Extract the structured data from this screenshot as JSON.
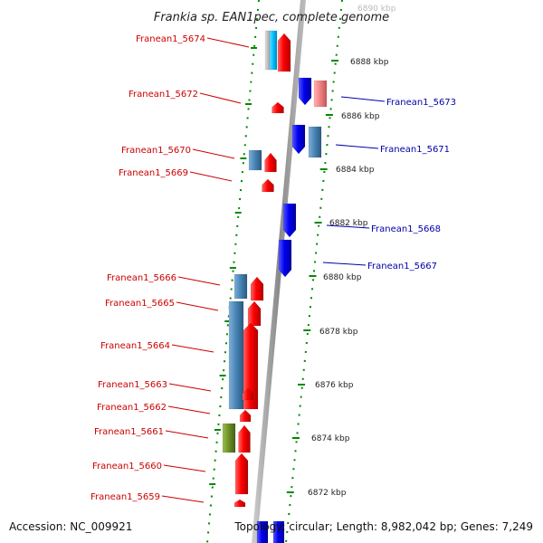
{
  "title": "Frankia sp. EAN1pec, complete genome",
  "accession": "Accession: NC_009921",
  "topology": "Topology: circular; Length: 8,982,042 bp; Genes: 7,249",
  "scale_labels": [
    "6890 kbp",
    "6888 kbp",
    "6886 kbp",
    "6884 kbp",
    "6882 kbp",
    "6880 kbp",
    "6878 kbp",
    "6876 kbp",
    "6874 kbp",
    "6872 kbp"
  ],
  "genes_left": [
    {
      "name": "Franean1_5674"
    },
    {
      "name": "Franean1_5672"
    },
    {
      "name": "Franean1_5670"
    },
    {
      "name": "Franean1_5669"
    },
    {
      "name": "Franean1_5666"
    },
    {
      "name": "Franean1_5665"
    },
    {
      "name": "Franean1_5664"
    },
    {
      "name": "Franean1_5663"
    },
    {
      "name": "Franean1_5662"
    },
    {
      "name": "Franean1_5661"
    },
    {
      "name": "Franean1_5660"
    },
    {
      "name": "Franean1_5659"
    }
  ],
  "genes_right": [
    {
      "name": "Franean1_5673"
    },
    {
      "name": "Franean1_5671"
    },
    {
      "name": "Franean1_5668"
    },
    {
      "name": "Franean1_5667"
    }
  ],
  "colors": {
    "forward": "#ff0000",
    "reverse": "#0000ee",
    "steel": "#4682b4",
    "cyan": "#00bfff",
    "pink": "#f08080",
    "olive": "#6b8e23",
    "grey": "#b0b0b0",
    "ruler": "#008800"
  }
}
